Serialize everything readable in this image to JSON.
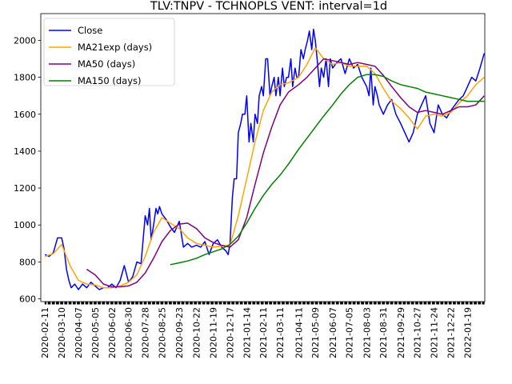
{
  "chart_data": {
    "type": "line",
    "title": "TLV:TNPV - TCHNOPLS VENT: interval=1d",
    "xlabel": "",
    "ylabel": "",
    "x_range": [
      "2020-02-04",
      "2022-02-17"
    ],
    "ylim": [
      585,
      2145
    ],
    "y_ticks": [
      600,
      800,
      1000,
      1200,
      1400,
      1600,
      1800,
      2000
    ],
    "x_ticks": [
      "2020-02-11",
      "2020-03-10",
      "2020-04-07",
      "2020-05-05",
      "2020-06-02",
      "2020-06-30",
      "2020-07-28",
      "2020-08-25",
      "2020-09-23",
      "2020-10-22",
      "2020-11-19",
      "2020-12-17",
      "2021-01-14",
      "2021-02-11",
      "2021-03-11",
      "2021-04-11",
      "2021-05-09",
      "2021-06-07",
      "2021-07-05",
      "2021-08-03",
      "2021-08-31",
      "2021-09-29",
      "2021-10-27",
      "2021-11-24",
      "2021-12-22",
      "2022-01-19"
    ],
    "grid": false,
    "legend": "top-left",
    "series": [
      {
        "name": "Close",
        "color": "#0000ff",
        "x": [
          "2020-02-11",
          "2020-02-18",
          "2020-02-25",
          "2020-03-03",
          "2020-03-10",
          "2020-03-14",
          "2020-03-18",
          "2020-03-22",
          "2020-03-26",
          "2020-04-01",
          "2020-04-07",
          "2020-04-14",
          "2020-04-21",
          "2020-04-28",
          "2020-05-05",
          "2020-05-12",
          "2020-05-19",
          "2020-05-26",
          "2020-06-02",
          "2020-06-09",
          "2020-06-16",
          "2020-06-23",
          "2020-06-30",
          "2020-07-07",
          "2020-07-14",
          "2020-07-21",
          "2020-07-28",
          "2020-08-01",
          "2020-08-04",
          "2020-08-07",
          "2020-08-11",
          "2020-08-15",
          "2020-08-18",
          "2020-08-21",
          "2020-08-25",
          "2020-09-01",
          "2020-09-08",
          "2020-09-15",
          "2020-09-23",
          "2020-09-30",
          "2020-10-07",
          "2020-10-14",
          "2020-10-22",
          "2020-10-29",
          "2020-11-05",
          "2020-11-12",
          "2020-11-19",
          "2020-11-26",
          "2020-12-03",
          "2020-12-10",
          "2020-12-14",
          "2020-12-17",
          "2020-12-21",
          "2020-12-24",
          "2020-12-28",
          "2020-12-31",
          "2021-01-04",
          "2021-01-07",
          "2021-01-11",
          "2021-01-14",
          "2021-01-18",
          "2021-01-21",
          "2021-01-25",
          "2021-01-28",
          "2021-02-01",
          "2021-02-04",
          "2021-02-08",
          "2021-02-11",
          "2021-02-15",
          "2021-02-18",
          "2021-02-22",
          "2021-02-25",
          "2021-03-01",
          "2021-03-04",
          "2021-03-08",
          "2021-03-11",
          "2021-03-15",
          "2021-03-18",
          "2021-03-22",
          "2021-03-25",
          "2021-03-29",
          "2021-04-01",
          "2021-04-05",
          "2021-04-08",
          "2021-04-11",
          "2021-04-15",
          "2021-04-19",
          "2021-04-22",
          "2021-04-26",
          "2021-04-29",
          "2021-05-03",
          "2021-05-06",
          "2021-05-09",
          "2021-05-12",
          "2021-05-16",
          "2021-05-19",
          "2021-05-23",
          "2021-05-27",
          "2021-05-31",
          "2021-06-03",
          "2021-06-07",
          "2021-06-14",
          "2021-06-21",
          "2021-06-28",
          "2021-07-05",
          "2021-07-12",
          "2021-07-19",
          "2021-07-26",
          "2021-08-03",
          "2021-08-07",
          "2021-08-10",
          "2021-08-14",
          "2021-08-17",
          "2021-08-21",
          "2021-08-24",
          "2021-08-31",
          "2021-09-07",
          "2021-09-14",
          "2021-09-21",
          "2021-09-29",
          "2021-10-06",
          "2021-10-13",
          "2021-10-20",
          "2021-10-27",
          "2021-11-03",
          "2021-11-10",
          "2021-11-17",
          "2021-11-24",
          "2021-12-01",
          "2021-12-08",
          "2021-12-15",
          "2021-12-22",
          "2021-12-29",
          "2022-01-05",
          "2022-01-12",
          "2022-01-19",
          "2022-01-26",
          "2022-02-02",
          "2022-02-09",
          "2022-02-16"
        ],
        "y": [
          840,
          830,
          850,
          930,
          930,
          870,
          760,
          700,
          660,
          680,
          650,
          680,
          660,
          690,
          670,
          650,
          660,
          660,
          680,
          660,
          700,
          780,
          690,
          720,
          800,
          790,
          1050,
          1000,
          1090,
          920,
          1000,
          1090,
          1060,
          1100,
          1060,
          1030,
          990,
          960,
          1020,
          880,
          900,
          880,
          890,
          880,
          910,
          840,
          900,
          920,
          880,
          860,
          840,
          900,
          1150,
          1250,
          1250,
          1500,
          1550,
          1600,
          1600,
          1700,
          1450,
          1550,
          1450,
          1600,
          1550,
          1700,
          1750,
          1700,
          1900,
          1900,
          1700,
          1750,
          1800,
          1700,
          1800,
          1700,
          1850,
          1750,
          1800,
          1800,
          1900,
          1750,
          1850,
          1800,
          1800,
          1950,
          1900,
          1950,
          2000,
          2050,
          1950,
          2060,
          2000,
          1900,
          1750,
          1850,
          1800,
          1900,
          1750,
          1900,
          1850,
          1880,
          1900,
          1820,
          1900,
          1850,
          1870,
          1800,
          1750,
          1700,
          1850,
          1650,
          1750,
          1700,
          1650,
          1600,
          1650,
          1680,
          1600,
          1550,
          1500,
          1450,
          1500,
          1600,
          1650,
          1700,
          1550,
          1500,
          1650,
          1600,
          1580,
          1620,
          1650,
          1680,
          1700,
          1750,
          1800,
          1780,
          1850,
          1930
        ]
      },
      {
        "name": "MA21exp (days)",
        "color": "#ffa500",
        "x": [
          "2020-02-11",
          "2020-02-25",
          "2020-03-10",
          "2020-03-24",
          "2020-04-07",
          "2020-04-21",
          "2020-05-05",
          "2020-05-19",
          "2020-06-02",
          "2020-06-16",
          "2020-06-30",
          "2020-07-14",
          "2020-07-28",
          "2020-08-11",
          "2020-08-25",
          "2020-09-08",
          "2020-09-23",
          "2020-10-07",
          "2020-10-22",
          "2020-11-05",
          "2020-11-19",
          "2020-12-03",
          "2020-12-17",
          "2020-12-31",
          "2021-01-14",
          "2021-01-28",
          "2021-02-11",
          "2021-02-25",
          "2021-03-11",
          "2021-03-25",
          "2021-04-11",
          "2021-04-25",
          "2021-05-09",
          "2021-05-23",
          "2021-06-07",
          "2021-06-21",
          "2021-07-05",
          "2021-07-19",
          "2021-08-03",
          "2021-08-17",
          "2021-08-31",
          "2021-09-14",
          "2021-09-29",
          "2021-10-13",
          "2021-10-27",
          "2021-11-10",
          "2021-11-24",
          "2021-12-08",
          "2021-12-22",
          "2022-01-05",
          "2022-01-19",
          "2022-02-02",
          "2022-02-16"
        ],
        "y": [
          830,
          845,
          895,
          780,
          700,
          680,
          675,
          660,
          660,
          670,
          690,
          730,
          830,
          960,
          1040,
          1010,
          980,
          930,
          900,
          890,
          880,
          885,
          890,
          1050,
          1250,
          1450,
          1620,
          1720,
          1760,
          1770,
          1800,
          1870,
          1960,
          1900,
          1870,
          1880,
          1860,
          1860,
          1860,
          1820,
          1740,
          1670,
          1630,
          1580,
          1520,
          1590,
          1600,
          1590,
          1610,
          1660,
          1700,
          1760,
          1800
        ]
      },
      {
        "name": "MA50 (days)",
        "color": "#800080",
        "x": [
          "2020-04-21",
          "2020-05-05",
          "2020-05-19",
          "2020-06-02",
          "2020-06-16",
          "2020-06-30",
          "2020-07-14",
          "2020-07-28",
          "2020-08-11",
          "2020-08-25",
          "2020-09-08",
          "2020-09-23",
          "2020-10-07",
          "2020-10-22",
          "2020-11-05",
          "2020-11-19",
          "2020-12-03",
          "2020-12-17",
          "2020-12-31",
          "2021-01-14",
          "2021-01-28",
          "2021-02-11",
          "2021-02-25",
          "2021-03-11",
          "2021-03-25",
          "2021-04-11",
          "2021-04-25",
          "2021-05-09",
          "2021-05-23",
          "2021-06-07",
          "2021-06-21",
          "2021-07-05",
          "2021-07-19",
          "2021-08-03",
          "2021-08-17",
          "2021-08-31",
          "2021-09-14",
          "2021-09-29",
          "2021-10-13",
          "2021-10-27",
          "2021-11-10",
          "2021-11-24",
          "2021-12-08",
          "2021-12-22",
          "2022-01-05",
          "2022-01-19",
          "2022-02-02",
          "2022-02-16"
        ],
        "y": [
          760,
          730,
          680,
          665,
          665,
          670,
          690,
          740,
          820,
          910,
          970,
          1005,
          1010,
          980,
          930,
          905,
          890,
          880,
          920,
          1040,
          1220,
          1390,
          1530,
          1650,
          1720,
          1760,
          1800,
          1850,
          1900,
          1890,
          1880,
          1870,
          1880,
          1870,
          1860,
          1810,
          1750,
          1690,
          1640,
          1610,
          1620,
          1610,
          1600,
          1620,
          1640,
          1640,
          1650,
          1700
        ]
      },
      {
        "name": "MA150 (days)",
        "color": "#008000",
        "x": [
          "2020-09-08",
          "2020-09-23",
          "2020-10-07",
          "2020-10-22",
          "2020-11-05",
          "2020-11-19",
          "2020-12-03",
          "2020-12-17",
          "2020-12-31",
          "2021-01-14",
          "2021-01-28",
          "2021-02-11",
          "2021-02-25",
          "2021-03-11",
          "2021-03-25",
          "2021-04-11",
          "2021-04-25",
          "2021-05-09",
          "2021-05-23",
          "2021-06-07",
          "2021-06-21",
          "2021-07-05",
          "2021-07-19",
          "2021-08-03",
          "2021-08-17",
          "2021-08-31",
          "2021-09-14",
          "2021-09-29",
          "2021-10-13",
          "2021-10-27",
          "2021-11-10",
          "2021-11-24",
          "2021-12-08",
          "2021-12-22",
          "2022-01-05",
          "2022-01-19",
          "2022-02-02",
          "2022-02-16"
        ],
        "y": [
          785,
          795,
          805,
          820,
          840,
          855,
          870,
          895,
          940,
          1010,
          1090,
          1160,
          1220,
          1270,
          1330,
          1410,
          1470,
          1530,
          1590,
          1650,
          1710,
          1760,
          1800,
          1815,
          1815,
          1805,
          1780,
          1760,
          1750,
          1740,
          1720,
          1710,
          1700,
          1690,
          1680,
          1670,
          1670,
          1670
        ]
      }
    ]
  }
}
